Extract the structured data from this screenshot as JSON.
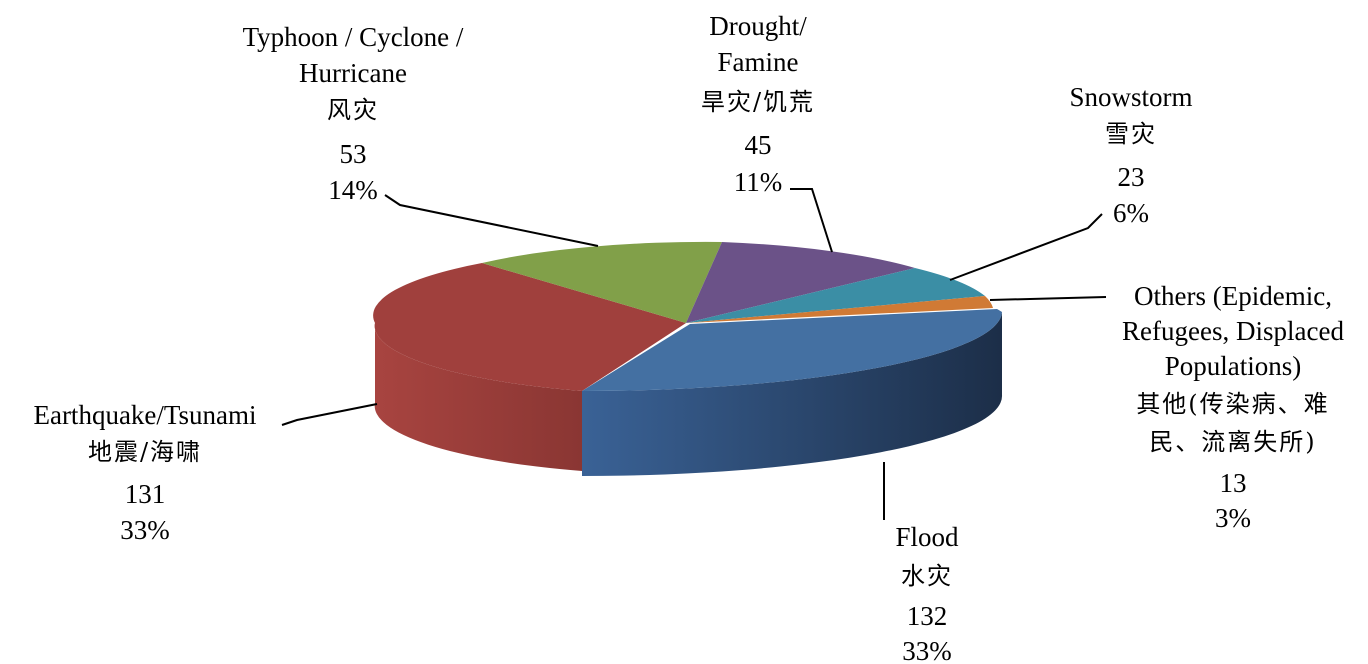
{
  "chart_data": {
    "type": "pie",
    "style": "3d-exploded-tilted",
    "slices": [
      {
        "key": "flood",
        "name": "Flood",
        "name_cn": "水灾",
        "value": 132,
        "percent": "33%",
        "color": "#4572A7"
      },
      {
        "key": "earthquake",
        "name": "Earthquake/Tsunami",
        "name_cn": "地震/海啸",
        "value": 131,
        "percent": "33%",
        "color": "#AA4643"
      },
      {
        "key": "typhoon",
        "name_lines": [
          "Typhoon / Cyclone /",
          "Hurricane"
        ],
        "name_cn": "风灾",
        "value": 53,
        "percent": "14%",
        "color": "#89A54E"
      },
      {
        "key": "drought",
        "name_lines": [
          "Drought/",
          "Famine"
        ],
        "name_cn": "旱灾/饥荒",
        "value": 45,
        "percent": "11%",
        "color": "#71588F"
      },
      {
        "key": "snowstorm",
        "name": "Snowstorm",
        "name_cn": "雪灾",
        "value": 23,
        "percent": "6%",
        "color": "#4198AF"
      },
      {
        "key": "others",
        "name_lines": [
          "Others (Epidemic,",
          "Refugees, Displaced",
          "Populations)"
        ],
        "name_cn_lines": [
          "其他(传染病、难",
          "民、流离失所)"
        ],
        "value": 13,
        "percent": "3%",
        "color": "#DB843D"
      }
    ]
  }
}
